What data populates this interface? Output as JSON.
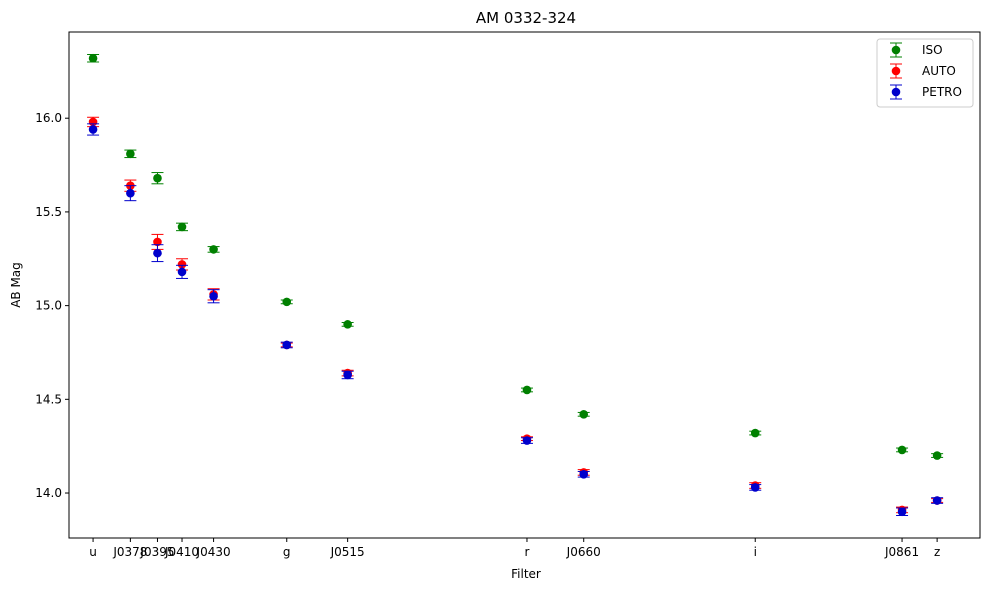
{
  "chart_data": {
    "type": "scatter",
    "title": "AM 0332-324",
    "xlabel": "Filter",
    "ylabel": "AB Mag",
    "categories": [
      "u",
      "J0378",
      "J0395",
      "J0410",
      "J0430",
      "g",
      "J0515",
      "r",
      "J0660",
      "i",
      "J0861",
      "z"
    ],
    "x_positions": [
      3536,
      3770,
      3940,
      4094,
      4292,
      4751,
      5133,
      6258,
      6614,
      7690,
      8611,
      8831
    ],
    "x_range": [
      3385,
      9100
    ],
    "ylim": [
      13.76,
      16.46
    ],
    "y_ticks": [
      14.0,
      14.5,
      15.0,
      15.5,
      16.0
    ],
    "y_tick_labels": [
      "14.0",
      "14.5",
      "15.0",
      "15.5",
      "16.0"
    ],
    "grid": false,
    "legend_position": "top-right",
    "series": [
      {
        "name": "ISO",
        "color": "#008000",
        "values": [
          16.32,
          15.81,
          15.68,
          15.42,
          15.3,
          15.02,
          14.9,
          14.55,
          14.42,
          14.32,
          14.23,
          14.2
        ],
        "errors": [
          0.02,
          0.02,
          0.03,
          0.02,
          0.015,
          0.01,
          0.01,
          0.01,
          0.01,
          0.01,
          0.01,
          0.01
        ]
      },
      {
        "name": "AUTO",
        "color": "#ff0000",
        "values": [
          15.98,
          15.64,
          15.34,
          15.22,
          15.06,
          14.79,
          14.64,
          14.29,
          14.11,
          14.04,
          13.91,
          13.96
        ],
        "errors": [
          0.025,
          0.03,
          0.04,
          0.03,
          0.03,
          0.01,
          0.015,
          0.01,
          0.015,
          0.015,
          0.015,
          0.01
        ]
      },
      {
        "name": "PETRO",
        "color": "#0000cc",
        "values": [
          15.94,
          15.6,
          15.28,
          15.18,
          15.05,
          14.79,
          14.63,
          14.28,
          14.1,
          14.03,
          13.9,
          13.96
        ],
        "errors": [
          0.03,
          0.04,
          0.045,
          0.035,
          0.035,
          0.015,
          0.02,
          0.015,
          0.015,
          0.015,
          0.02,
          0.015
        ]
      }
    ]
  }
}
